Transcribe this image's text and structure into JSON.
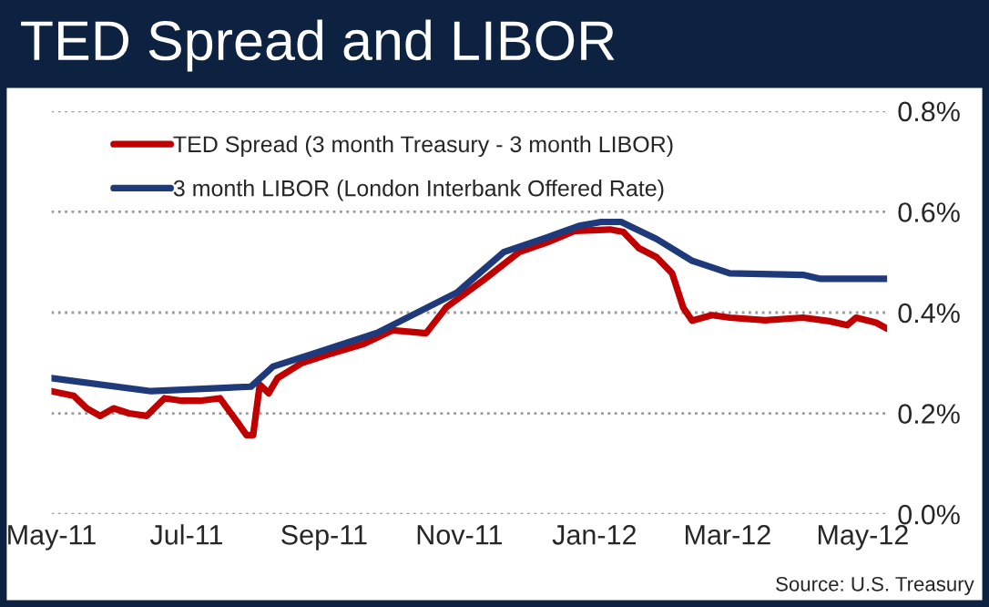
{
  "chart_data": {
    "type": "line",
    "title": "TED Spread and LIBOR",
    "series": [
      {
        "name": "TED Spread (3 month Treasury - 3 month LIBOR)",
        "color": "#c00000",
        "x": [
          "2011-05-01",
          "2011-05-11",
          "2011-05-17",
          "2011-05-23",
          "2011-05-29",
          "2011-06-05",
          "2011-06-13",
          "2011-06-21",
          "2011-06-29",
          "2011-07-07",
          "2011-07-16",
          "2011-07-24",
          "2011-07-28",
          "2011-07-31",
          "2011-08-03",
          "2011-08-07",
          "2011-08-11",
          "2011-08-22",
          "2011-09-03",
          "2011-09-19",
          "2011-10-02",
          "2011-10-17",
          "2011-10-26",
          "2011-11-12",
          "2011-11-28",
          "2011-12-11",
          "2011-12-23",
          "2012-01-08",
          "2012-01-14",
          "2012-01-21",
          "2012-01-29",
          "2012-02-05",
          "2012-02-10",
          "2012-02-14",
          "2012-02-23",
          "2012-03-02",
          "2012-03-18",
          "2012-04-04",
          "2012-04-16",
          "2012-04-24",
          "2012-04-28",
          "2012-05-07",
          "2012-05-12"
        ],
        "values": [
          0.244,
          0.235,
          0.21,
          0.195,
          0.21,
          0.2,
          0.195,
          0.23,
          0.225,
          0.225,
          0.23,
          0.182,
          0.157,
          0.157,
          0.257,
          0.24,
          0.27,
          0.3,
          0.317,
          0.338,
          0.365,
          0.359,
          0.41,
          0.465,
          0.52,
          0.54,
          0.562,
          0.565,
          0.56,
          0.528,
          0.51,
          0.478,
          0.41,
          0.384,
          0.395,
          0.39,
          0.385,
          0.39,
          0.383,
          0.375,
          0.39,
          0.38,
          0.368
        ]
      },
      {
        "name": "3 month LIBOR (London Interbank Offered Rate)",
        "color": "#1f3a7a",
        "x": [
          "2011-05-01",
          "2011-06-15",
          "2011-07-30",
          "2011-08-09",
          "2011-08-27",
          "2011-09-25",
          "2011-10-31",
          "2011-11-21",
          "2011-12-11",
          "2011-12-25",
          "2012-01-04",
          "2012-01-13",
          "2012-01-29",
          "2012-02-14",
          "2012-03-02",
          "2012-04-04",
          "2012-04-12",
          "2012-05-12"
        ],
        "values": [
          0.27,
          0.244,
          0.253,
          0.293,
          0.318,
          0.36,
          0.44,
          0.52,
          0.55,
          0.572,
          0.58,
          0.58,
          0.546,
          0.503,
          0.478,
          0.475,
          0.467,
          0.467
        ]
      }
    ],
    "xlim": [
      "2011-05-01",
      "2012-05-12"
    ],
    "xticks": [
      {
        "value": "2011-05-01",
        "label": "May-11"
      },
      {
        "value": "2011-07-01",
        "label": "Jul-11"
      },
      {
        "value": "2011-09-01",
        "label": "Sep-11"
      },
      {
        "value": "2011-11-01",
        "label": "Nov-11"
      },
      {
        "value": "2012-01-01",
        "label": "Jan-12"
      },
      {
        "value": "2012-03-01",
        "label": "Mar-12"
      },
      {
        "value": "2012-05-01",
        "label": "May-12"
      }
    ],
    "ylim": [
      0,
      0.8
    ],
    "yticks": [
      {
        "value": 0,
        "label": "0.0%"
      },
      {
        "value": 0.2,
        "label": "0.2%"
      },
      {
        "value": 0.4,
        "label": "0.4%"
      },
      {
        "value": 0.6,
        "label": "0.6%"
      },
      {
        "value": 0.8,
        "label": "0.8%"
      }
    ],
    "grid": "y",
    "legend": "top left",
    "marker": "none",
    "line_style": "solid",
    "annotations": [
      "Source: U.S. Treasury"
    ]
  }
}
